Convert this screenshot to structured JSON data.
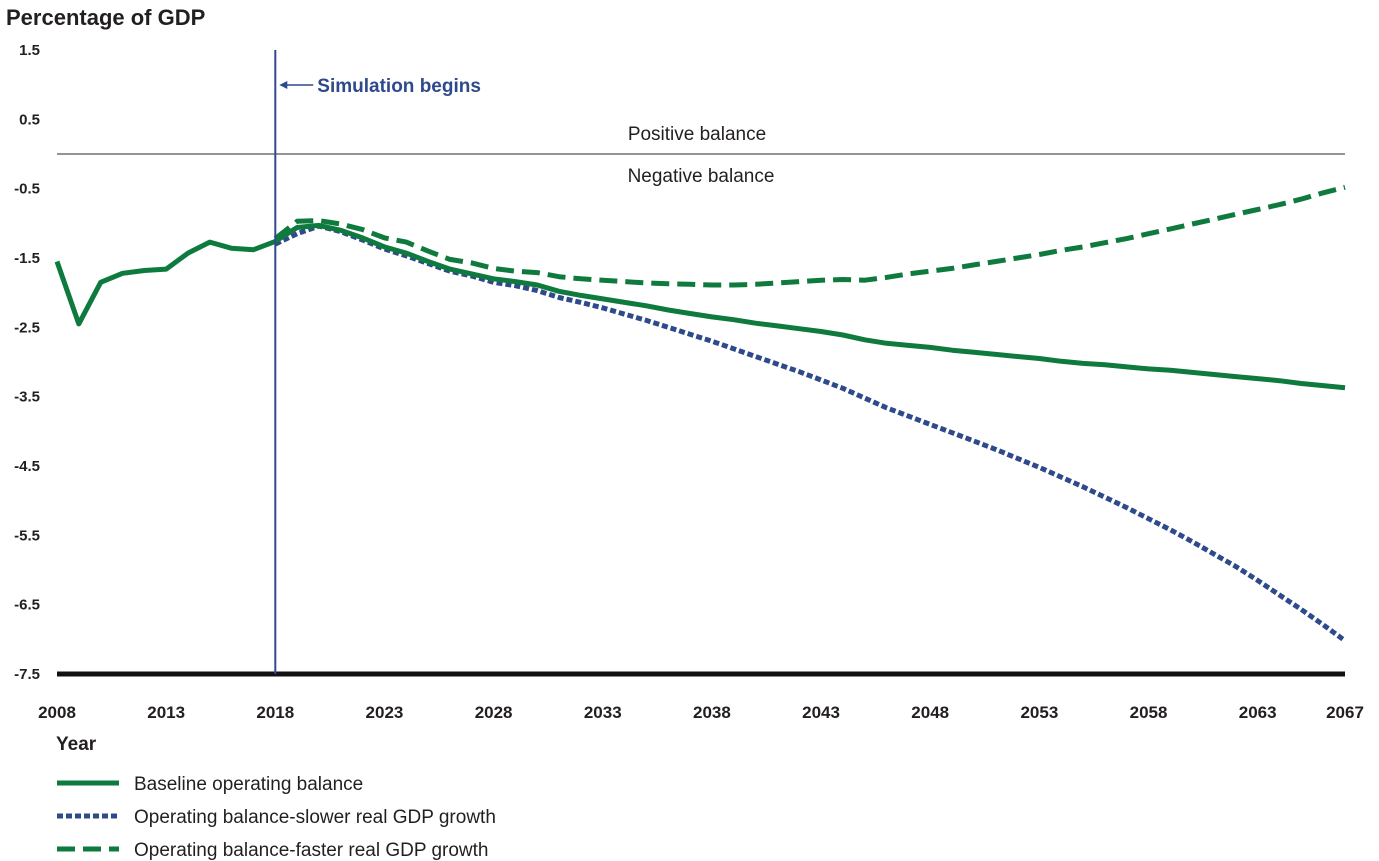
{
  "chart_data": {
    "type": "line",
    "ylabel": "Percentage of GDP",
    "xlabel": "Year",
    "ylim": [
      -7.5,
      1.5
    ],
    "xlim": [
      2008,
      2067
    ],
    "y_ticks": [
      "1.5",
      "0.5",
      "-0.5",
      "-1.5",
      "-2.5",
      "-3.5",
      "-4.5",
      "-5.5",
      "-6.5",
      "-7.5"
    ],
    "x_ticks": [
      "2008",
      "2013",
      "2018",
      "2023",
      "2028",
      "2033",
      "2038",
      "2043",
      "2048",
      "2053",
      "2058",
      "2063",
      "2067"
    ],
    "zero_line": 0,
    "region_labels": {
      "above": "Positive balance",
      "below": "Negative balance"
    },
    "annotation": {
      "label": "Simulation begins",
      "x": 2018,
      "color": "#2e4a8c"
    },
    "series": [
      {
        "name": "Baseline operating balance",
        "style": "solid",
        "color": "#0f7a3e",
        "x": [
          2008,
          2009,
          2010,
          2011,
          2012,
          2013,
          2014,
          2015,
          2016,
          2017,
          2018,
          2019,
          2020,
          2021,
          2022,
          2023,
          2024,
          2025,
          2026,
          2027,
          2028,
          2029,
          2030,
          2031,
          2032,
          2033,
          2034,
          2035,
          2036,
          2037,
          2038,
          2039,
          2040,
          2041,
          2042,
          2043,
          2044,
          2045,
          2046,
          2047,
          2048,
          2049,
          2050,
          2051,
          2052,
          2053,
          2054,
          2055,
          2056,
          2057,
          2058,
          2059,
          2060,
          2061,
          2062,
          2063,
          2064,
          2065,
          2066,
          2067
        ],
        "y": [
          -1.55,
          -2.45,
          -1.85,
          -1.72,
          -1.68,
          -1.66,
          -1.43,
          -1.27,
          -1.36,
          -1.38,
          -1.26,
          -1.06,
          -1.03,
          -1.1,
          -1.21,
          -1.34,
          -1.43,
          -1.55,
          -1.66,
          -1.73,
          -1.8,
          -1.84,
          -1.89,
          -1.98,
          -2.04,
          -2.09,
          -2.14,
          -2.19,
          -2.25,
          -2.3,
          -2.35,
          -2.39,
          -2.44,
          -2.48,
          -2.52,
          -2.56,
          -2.61,
          -2.68,
          -2.73,
          -2.76,
          -2.79,
          -2.83,
          -2.86,
          -2.89,
          -2.92,
          -2.95,
          -2.99,
          -3.02,
          -3.04,
          -3.07,
          -3.1,
          -3.12,
          -3.15,
          -3.18,
          -3.21,
          -3.24,
          -3.27,
          -3.31,
          -3.34,
          -3.37
        ]
      },
      {
        "name": "Operating balance-slower real GDP growth",
        "style": "dotted",
        "color": "#2e4a8c",
        "x": [
          2018,
          2019,
          2020,
          2021,
          2022,
          2023,
          2024,
          2025,
          2026,
          2027,
          2028,
          2029,
          2030,
          2031,
          2032,
          2033,
          2034,
          2035,
          2036,
          2037,
          2038,
          2039,
          2040,
          2041,
          2042,
          2043,
          2044,
          2045,
          2046,
          2047,
          2048,
          2049,
          2050,
          2051,
          2052,
          2053,
          2054,
          2055,
          2056,
          2057,
          2058,
          2059,
          2060,
          2061,
          2062,
          2063,
          2064,
          2065,
          2066,
          2067
        ],
        "y": [
          -1.3,
          -1.15,
          -1.04,
          -1.12,
          -1.24,
          -1.37,
          -1.47,
          -1.58,
          -1.69,
          -1.76,
          -1.85,
          -1.9,
          -1.97,
          -2.07,
          -2.14,
          -2.22,
          -2.31,
          -2.4,
          -2.5,
          -2.6,
          -2.7,
          -2.81,
          -2.92,
          -3.03,
          -3.14,
          -3.26,
          -3.38,
          -3.52,
          -3.66,
          -3.78,
          -3.9,
          -4.02,
          -4.14,
          -4.26,
          -4.39,
          -4.52,
          -4.66,
          -4.8,
          -4.95,
          -5.1,
          -5.26,
          -5.42,
          -5.59,
          -5.77,
          -5.95,
          -6.15,
          -6.36,
          -6.57,
          -6.79,
          -7.02
        ]
      },
      {
        "name": "Operating balance-faster real GDP growth",
        "style": "dashed",
        "color": "#0f7a3e",
        "x": [
          2018,
          2019,
          2020,
          2021,
          2022,
          2023,
          2024,
          2025,
          2026,
          2027,
          2028,
          2029,
          2030,
          2031,
          2032,
          2033,
          2034,
          2035,
          2036,
          2037,
          2038,
          2039,
          2040,
          2041,
          2042,
          2043,
          2044,
          2045,
          2046,
          2047,
          2048,
          2049,
          2050,
          2051,
          2052,
          2053,
          2054,
          2055,
          2056,
          2057,
          2058,
          2059,
          2060,
          2061,
          2062,
          2063,
          2064,
          2065,
          2066,
          2067
        ],
        "y": [
          -1.22,
          -0.97,
          -0.96,
          -1.01,
          -1.09,
          -1.21,
          -1.27,
          -1.4,
          -1.52,
          -1.57,
          -1.65,
          -1.69,
          -1.71,
          -1.77,
          -1.8,
          -1.82,
          -1.84,
          -1.86,
          -1.87,
          -1.88,
          -1.89,
          -1.89,
          -1.88,
          -1.86,
          -1.84,
          -1.82,
          -1.81,
          -1.82,
          -1.78,
          -1.73,
          -1.69,
          -1.65,
          -1.6,
          -1.55,
          -1.5,
          -1.45,
          -1.39,
          -1.34,
          -1.28,
          -1.22,
          -1.15,
          -1.08,
          -1.01,
          -0.94,
          -0.87,
          -0.8,
          -0.73,
          -0.65,
          -0.56,
          -0.48
        ]
      }
    ],
    "legend_position": "bottom-left"
  }
}
